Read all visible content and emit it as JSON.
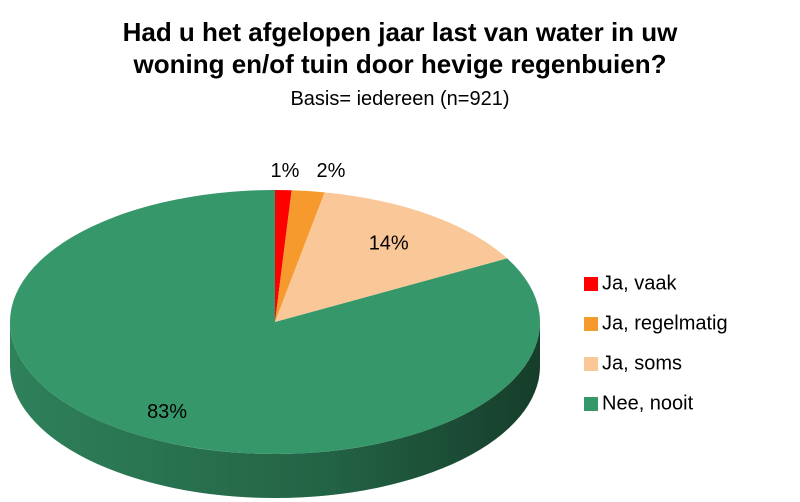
{
  "chart_data": {
    "type": "pie",
    "title": "Had u het afgelopen jaar last van water in uw woning en/of tuin door hevige regenbuien?",
    "subtitle": "Basis= iedereen (n=921)",
    "categories": [
      "Ja, vaak",
      "Ja, regelmatig",
      "Ja, soms",
      "Nee, nooit"
    ],
    "values": [
      1,
      2,
      14,
      83
    ],
    "value_labels": [
      "1%",
      "2%",
      "14%",
      "83%"
    ],
    "colors": [
      "#ff0000",
      "#f79a2e",
      "#fac898",
      "#36986a"
    ],
    "legend": "right"
  }
}
